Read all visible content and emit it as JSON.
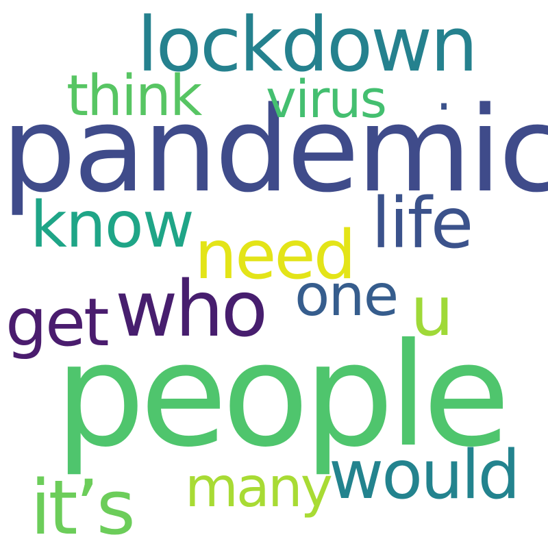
{
  "words": [
    {
      "id": "pandemic",
      "text": "pandemic",
      "color": "#3f4b8a"
    },
    {
      "id": "people",
      "text": "people",
      "color": "#4fc56d"
    },
    {
      "id": "lockdown",
      "text": "lockdown",
      "color": "#25818e"
    },
    {
      "id": "think",
      "text": "think",
      "color": "#57c563"
    },
    {
      "id": "virus",
      "text": "virus",
      "color": "#44bf70"
    },
    {
      "id": "know",
      "text": "know",
      "color": "#1fa587"
    },
    {
      "id": "life",
      "text": "life",
      "color": "#3b528b"
    },
    {
      "id": "need",
      "text": "need",
      "color": "#e3e418"
    },
    {
      "id": "who",
      "text": "who",
      "color": "#471e6e"
    },
    {
      "id": "one",
      "text": "one",
      "color": "#365d8d"
    },
    {
      "id": "u",
      "text": "u",
      "color": "#9fd938"
    },
    {
      "id": "get",
      "text": "get",
      "color": "#4a1c6e"
    },
    {
      "id": "would",
      "text": "would",
      "color": "#23838e"
    },
    {
      "id": "many",
      "text": "many",
      "color": "#a8db34"
    },
    {
      "id": "its",
      "text": "it’s",
      "color": "#6ccd5a"
    },
    {
      "id": "dot",
      "text": ".",
      "color": "#3b528b"
    }
  ]
}
